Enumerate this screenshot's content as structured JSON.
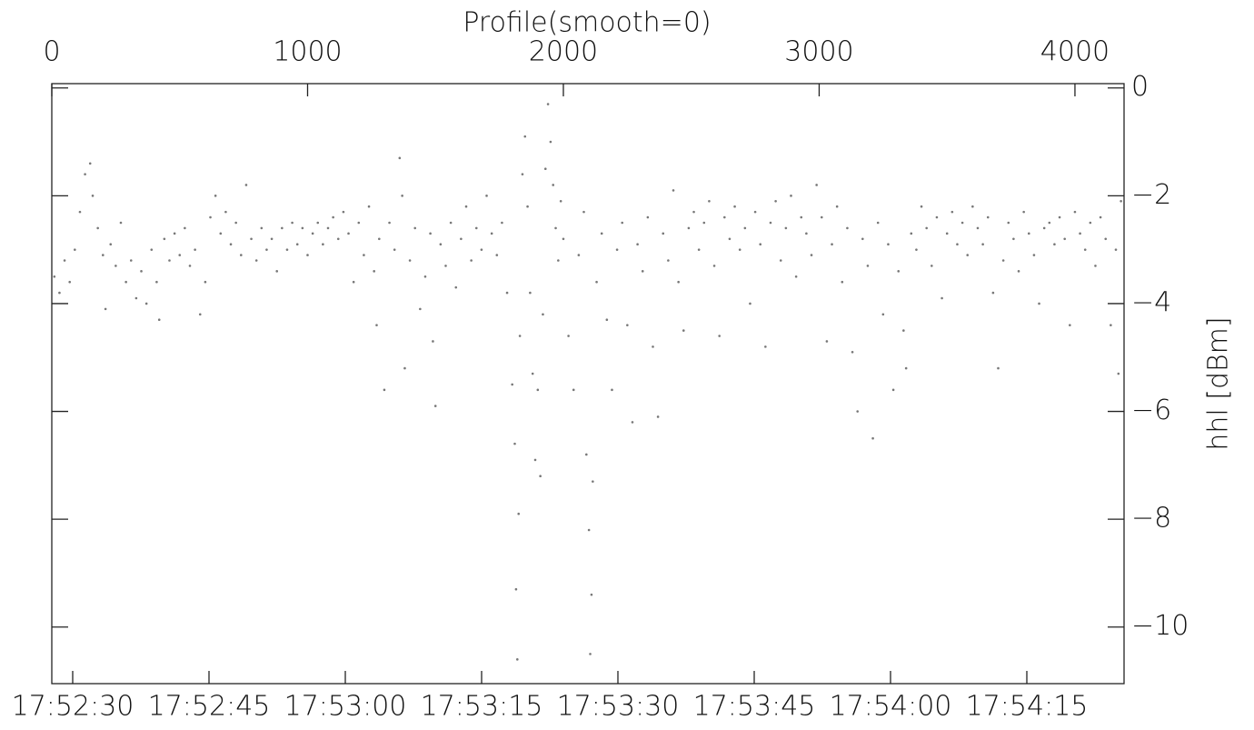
{
  "chart_data": {
    "type": "scatter",
    "title": "Profile(smooth=0)",
    "y_label": "hhl [dBm]",
    "color": "#777777",
    "xlim": [
      0,
      4192
    ],
    "xticks": [
      0,
      1000,
      2000,
      3000,
      4000
    ],
    "ylim": [
      -11.05,
      0.08
    ],
    "yticks": [
      0,
      {
        "value": -2,
        "label": "−2"
      },
      {
        "value": -4,
        "label": "−4"
      },
      {
        "value": -6,
        "label": "−6"
      },
      {
        "value": -8,
        "label": "−8"
      },
      {
        "value": -10,
        "label": "−10"
      }
    ],
    "x2lim": [
      27.7,
      145.7
    ],
    "x2ticks": [
      {
        "value": 30,
        "label": "17:52:30"
      },
      {
        "value": 45,
        "label": "17:52:45"
      },
      {
        "value": 60,
        "label": "17:53:00"
      },
      {
        "value": 75,
        "label": "17:53:15"
      },
      {
        "value": 90,
        "label": "17:53:30"
      },
      {
        "value": 105,
        "label": "17:53:45"
      },
      {
        "value": 120,
        "label": "17:54:00"
      },
      {
        "value": 135,
        "label": "17:54:15"
      }
    ],
    "x": [
      10,
      30,
      50,
      70,
      90,
      110,
      130,
      150,
      160,
      180,
      200,
      210,
      230,
      250,
      270,
      290,
      310,
      330,
      350,
      370,
      390,
      410,
      420,
      440,
      460,
      480,
      500,
      520,
      540,
      560,
      580,
      600,
      620,
      640,
      660,
      680,
      700,
      720,
      740,
      760,
      780,
      800,
      820,
      840,
      860,
      880,
      900,
      920,
      940,
      960,
      980,
      1000,
      1020,
      1040,
      1060,
      1080,
      1100,
      1120,
      1140,
      1160,
      1180,
      1200,
      1220,
      1240,
      1260,
      1270,
      1280,
      1300,
      1320,
      1340,
      1360,
      1370,
      1380,
      1400,
      1420,
      1440,
      1460,
      1480,
      1490,
      1500,
      1520,
      1540,
      1560,
      1580,
      1600,
      1620,
      1640,
      1660,
      1680,
      1700,
      1720,
      1740,
      1760,
      1780,
      1800,
      1810,
      1815,
      1820,
      1825,
      1830,
      1840,
      1850,
      1860,
      1870,
      1880,
      1890,
      1900,
      1910,
      1920,
      1930,
      1940,
      1950,
      1960,
      1970,
      1980,
      1990,
      2000,
      2020,
      2040,
      2060,
      2080,
      2090,
      2100,
      2105,
      2110,
      2115,
      2130,
      2150,
      2170,
      2190,
      2210,
      2230,
      2250,
      2270,
      2290,
      2310,
      2330,
      2350,
      2370,
      2390,
      2410,
      2430,
      2450,
      2470,
      2490,
      2510,
      2530,
      2550,
      2570,
      2590,
      2610,
      2630,
      2650,
      2670,
      2690,
      2710,
      2730,
      2750,
      2770,
      2790,
      2810,
      2830,
      2850,
      2870,
      2890,
      2910,
      2930,
      2950,
      2970,
      2990,
      3010,
      3030,
      3050,
      3070,
      3090,
      3110,
      3130,
      3150,
      3170,
      3190,
      3210,
      3230,
      3250,
      3270,
      3290,
      3310,
      3330,
      3340,
      3360,
      3380,
      3400,
      3420,
      3440,
      3460,
      3480,
      3500,
      3520,
      3540,
      3560,
      3580,
      3600,
      3620,
      3640,
      3660,
      3680,
      3700,
      3720,
      3740,
      3760,
      3780,
      3800,
      3820,
      3840,
      3860,
      3880,
      3900,
      3920,
      3940,
      3960,
      3980,
      4000,
      4020,
      4040,
      4060,
      4080,
      4100,
      4120,
      4140,
      4160,
      4170,
      4180
    ],
    "y": [
      -3.5,
      -3.8,
      -3.2,
      -3.6,
      -3.0,
      -2.3,
      -1.6,
      -1.4,
      -2.0,
      -2.6,
      -3.1,
      -4.1,
      -2.9,
      -3.3,
      -2.5,
      -3.6,
      -3.2,
      -3.9,
      -3.4,
      -4.0,
      -3.0,
      -3.6,
      -4.3,
      -2.8,
      -3.2,
      -2.7,
      -3.1,
      -2.6,
      -3.3,
      -3.0,
      -4.2,
      -3.6,
      -2.4,
      -2.0,
      -2.7,
      -2.3,
      -2.9,
      -2.5,
      -3.1,
      -1.8,
      -2.8,
      -3.2,
      -2.6,
      -3.0,
      -2.8,
      -3.4,
      -2.6,
      -3.0,
      -2.5,
      -2.9,
      -2.6,
      -3.1,
      -2.7,
      -2.5,
      -2.9,
      -2.6,
      -2.4,
      -2.8,
      -2.3,
      -2.7,
      -3.6,
      -2.5,
      -3.1,
      -2.2,
      -3.4,
      -4.4,
      -2.8,
      -5.6,
      -2.5,
      -3.0,
      -1.3,
      -2.0,
      -5.2,
      -3.2,
      -2.6,
      -4.1,
      -3.5,
      -2.7,
      -4.7,
      -5.9,
      -2.9,
      -3.3,
      -2.5,
      -3.7,
      -2.8,
      -2.2,
      -3.2,
      -2.6,
      -3.0,
      -2.0,
      -2.7,
      -3.1,
      -2.5,
      -3.8,
      -5.5,
      -6.6,
      -9.3,
      -10.6,
      -7.9,
      -4.6,
      -1.6,
      -0.9,
      -2.2,
      -3.8,
      -5.3,
      -6.9,
      -5.6,
      -7.2,
      -4.2,
      -1.5,
      -0.3,
      -1.0,
      -1.8,
      -2.6,
      -3.2,
      -2.1,
      -2.8,
      -4.6,
      -5.6,
      -3.1,
      -2.3,
      -6.8,
      -8.2,
      -10.5,
      -9.4,
      -7.3,
      -3.6,
      -2.7,
      -4.3,
      -5.6,
      -3.0,
      -2.5,
      -4.4,
      -6.2,
      -2.9,
      -3.4,
      -2.4,
      -4.8,
      -6.1,
      -2.7,
      -3.2,
      -1.9,
      -3.6,
      -4.5,
      -2.6,
      -2.3,
      -3.0,
      -2.5,
      -2.1,
      -3.3,
      -4.6,
      -2.4,
      -2.8,
      -2.2,
      -3.0,
      -2.6,
      -4.0,
      -2.3,
      -2.9,
      -4.8,
      -2.5,
      -2.1,
      -3.2,
      -2.6,
      -2.0,
      -3.5,
      -2.4,
      -2.7,
      -3.1,
      -1.8,
      -2.4,
      -4.7,
      -2.9,
      -2.2,
      -3.6,
      -2.6,
      -4.9,
      -6.0,
      -2.8,
      -3.3,
      -6.5,
      -2.5,
      -4.2,
      -2.9,
      -5.6,
      -3.4,
      -4.5,
      -5.2,
      -2.7,
      -3.0,
      -2.2,
      -2.6,
      -3.3,
      -2.4,
      -3.9,
      -2.7,
      -2.3,
      -2.9,
      -2.5,
      -3.1,
      -2.2,
      -2.6,
      -2.9,
      -2.4,
      -3.8,
      -5.2,
      -3.2,
      -2.5,
      -2.8,
      -3.4,
      -2.3,
      -2.7,
      -3.1,
      -4.0,
      -2.6,
      -2.5,
      -2.9,
      -2.4,
      -2.8,
      -4.4,
      -2.3,
      -2.7,
      -3.0,
      -2.5,
      -3.3,
      -2.4,
      -2.8,
      -4.4,
      -3.0,
      -5.3,
      -2.1
    ]
  }
}
